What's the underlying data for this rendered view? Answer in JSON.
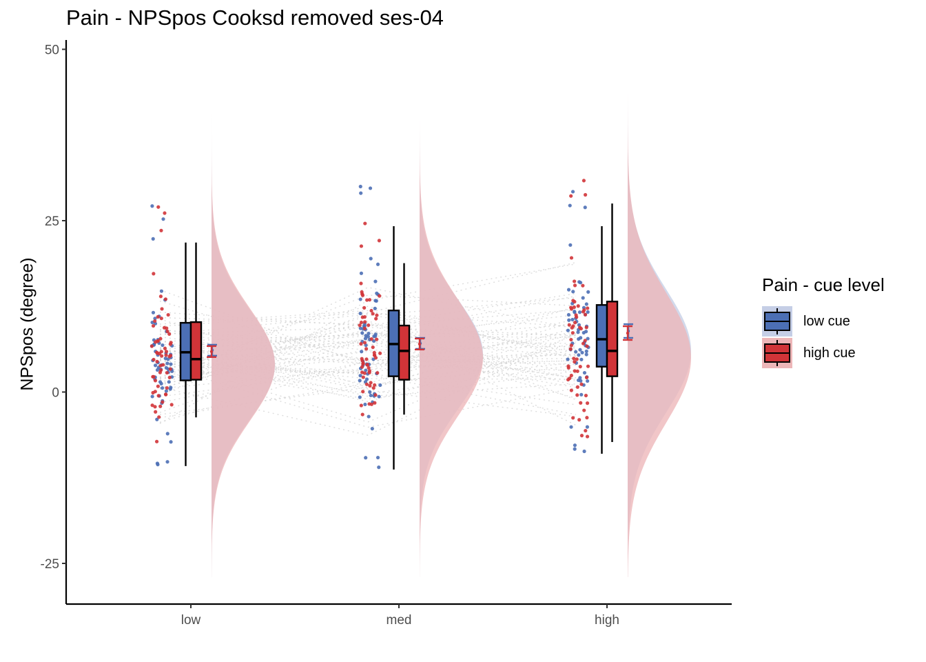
{
  "chart_data": {
    "type": "raincloud",
    "title": "Pain  - NPSpos Cooksd removed  ses-04",
    "xlabel": "",
    "ylabel": "NPSpos (degree)",
    "ylim": [
      -30,
      50
    ],
    "yticks": [
      -25,
      0,
      25,
      50
    ],
    "categories": [
      "low",
      "med",
      "high"
    ],
    "grid": false,
    "legend": {
      "title": "Pain  - cue level",
      "position": "right"
    },
    "series": [
      {
        "name": "low cue",
        "color": "#4C6FB5",
        "fill": "#C5CEE6",
        "box": [
          {
            "min": -10.8,
            "q1": 1.7,
            "median": 5.8,
            "q3": 10.1,
            "max": 21.8
          },
          {
            "min": -11.3,
            "q1": 2.3,
            "median": 7.0,
            "q3": 11.9,
            "max": 24.2
          },
          {
            "min": -9.0,
            "q1": 3.7,
            "median": 7.7,
            "q3": 12.7,
            "max": 24.2
          }
        ],
        "mean": [
          6.1,
          7.1,
          8.9
        ],
        "se": [
          0.8,
          0.8,
          1.0
        ],
        "density_mode": [
          4.0,
          5.5,
          6.0
        ]
      },
      {
        "name": "high cue",
        "color": "#D13438",
        "fill": "#EDB6B8",
        "box": [
          {
            "min": -3.7,
            "q1": 1.8,
            "median": 4.8,
            "q3": 10.2,
            "max": 21.8
          },
          {
            "min": -3.3,
            "q1": 1.8,
            "median": 6.0,
            "q3": 9.7,
            "max": 18.8
          },
          {
            "min": -7.3,
            "q1": 2.3,
            "median": 6.0,
            "q3": 13.2,
            "max": 27.5
          }
        ],
        "mean": [
          5.9,
          7.0,
          8.6
        ],
        "se": [
          0.8,
          0.8,
          1.0
        ],
        "density_mode": [
          4.0,
          5.0,
          5.0
        ]
      }
    ]
  },
  "legend_keys": {
    "low_cue": "low cue",
    "high_cue": "high cue"
  }
}
